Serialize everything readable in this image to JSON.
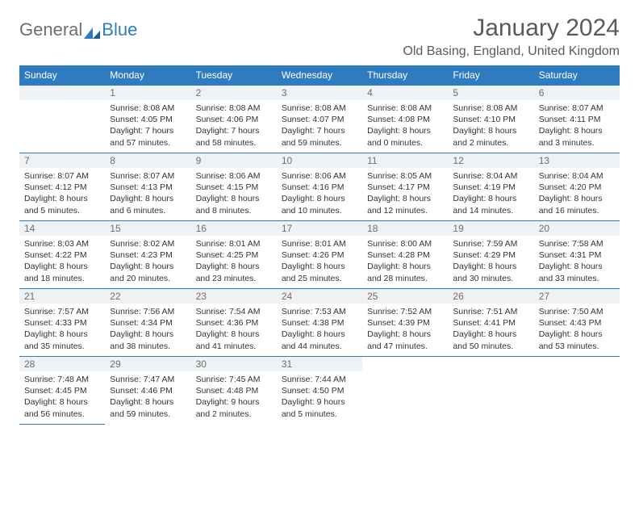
{
  "brand": {
    "part1": "General",
    "part2": "Blue"
  },
  "title": "January 2024",
  "location": "Old Basing, England, United Kingdom",
  "colors": {
    "header_bg": "#2f7bbf",
    "header_text": "#ffffff",
    "daynum_bg": "#eef2f5",
    "text": "#333333",
    "border": "#2f7bbf",
    "brand_gray": "#6e6e6e",
    "brand_blue": "#2f7bbf"
  },
  "font": {
    "family": "Arial",
    "title_size_pt": 22,
    "location_size_pt": 12,
    "header_size_pt": 9,
    "body_size_pt": 8
  },
  "weekdays": [
    "Sunday",
    "Monday",
    "Tuesday",
    "Wednesday",
    "Thursday",
    "Friday",
    "Saturday"
  ],
  "grid": {
    "rows": 6,
    "cols": 7,
    "first_day_col": 1,
    "days_in_month": 31
  },
  "days": [
    {
      "n": "1",
      "sunrise": "8:08 AM",
      "sunset": "4:05 PM",
      "daylight": "7 hours and 57 minutes."
    },
    {
      "n": "2",
      "sunrise": "8:08 AM",
      "sunset": "4:06 PM",
      "daylight": "7 hours and 58 minutes."
    },
    {
      "n": "3",
      "sunrise": "8:08 AM",
      "sunset": "4:07 PM",
      "daylight": "7 hours and 59 minutes."
    },
    {
      "n": "4",
      "sunrise": "8:08 AM",
      "sunset": "4:08 PM",
      "daylight": "8 hours and 0 minutes."
    },
    {
      "n": "5",
      "sunrise": "8:08 AM",
      "sunset": "4:10 PM",
      "daylight": "8 hours and 2 minutes."
    },
    {
      "n": "6",
      "sunrise": "8:07 AM",
      "sunset": "4:11 PM",
      "daylight": "8 hours and 3 minutes."
    },
    {
      "n": "7",
      "sunrise": "8:07 AM",
      "sunset": "4:12 PM",
      "daylight": "8 hours and 5 minutes."
    },
    {
      "n": "8",
      "sunrise": "8:07 AM",
      "sunset": "4:13 PM",
      "daylight": "8 hours and 6 minutes."
    },
    {
      "n": "9",
      "sunrise": "8:06 AM",
      "sunset": "4:15 PM",
      "daylight": "8 hours and 8 minutes."
    },
    {
      "n": "10",
      "sunrise": "8:06 AM",
      "sunset": "4:16 PM",
      "daylight": "8 hours and 10 minutes."
    },
    {
      "n": "11",
      "sunrise": "8:05 AM",
      "sunset": "4:17 PM",
      "daylight": "8 hours and 12 minutes."
    },
    {
      "n": "12",
      "sunrise": "8:04 AM",
      "sunset": "4:19 PM",
      "daylight": "8 hours and 14 minutes."
    },
    {
      "n": "13",
      "sunrise": "8:04 AM",
      "sunset": "4:20 PM",
      "daylight": "8 hours and 16 minutes."
    },
    {
      "n": "14",
      "sunrise": "8:03 AM",
      "sunset": "4:22 PM",
      "daylight": "8 hours and 18 minutes."
    },
    {
      "n": "15",
      "sunrise": "8:02 AM",
      "sunset": "4:23 PM",
      "daylight": "8 hours and 20 minutes."
    },
    {
      "n": "16",
      "sunrise": "8:01 AM",
      "sunset": "4:25 PM",
      "daylight": "8 hours and 23 minutes."
    },
    {
      "n": "17",
      "sunrise": "8:01 AM",
      "sunset": "4:26 PM",
      "daylight": "8 hours and 25 minutes."
    },
    {
      "n": "18",
      "sunrise": "8:00 AM",
      "sunset": "4:28 PM",
      "daylight": "8 hours and 28 minutes."
    },
    {
      "n": "19",
      "sunrise": "7:59 AM",
      "sunset": "4:29 PM",
      "daylight": "8 hours and 30 minutes."
    },
    {
      "n": "20",
      "sunrise": "7:58 AM",
      "sunset": "4:31 PM",
      "daylight": "8 hours and 33 minutes."
    },
    {
      "n": "21",
      "sunrise": "7:57 AM",
      "sunset": "4:33 PM",
      "daylight": "8 hours and 35 minutes."
    },
    {
      "n": "22",
      "sunrise": "7:56 AM",
      "sunset": "4:34 PM",
      "daylight": "8 hours and 38 minutes."
    },
    {
      "n": "23",
      "sunrise": "7:54 AM",
      "sunset": "4:36 PM",
      "daylight": "8 hours and 41 minutes."
    },
    {
      "n": "24",
      "sunrise": "7:53 AM",
      "sunset": "4:38 PM",
      "daylight": "8 hours and 44 minutes."
    },
    {
      "n": "25",
      "sunrise": "7:52 AM",
      "sunset": "4:39 PM",
      "daylight": "8 hours and 47 minutes."
    },
    {
      "n": "26",
      "sunrise": "7:51 AM",
      "sunset": "4:41 PM",
      "daylight": "8 hours and 50 minutes."
    },
    {
      "n": "27",
      "sunrise": "7:50 AM",
      "sunset": "4:43 PM",
      "daylight": "8 hours and 53 minutes."
    },
    {
      "n": "28",
      "sunrise": "7:48 AM",
      "sunset": "4:45 PM",
      "daylight": "8 hours and 56 minutes."
    },
    {
      "n": "29",
      "sunrise": "7:47 AM",
      "sunset": "4:46 PM",
      "daylight": "8 hours and 59 minutes."
    },
    {
      "n": "30",
      "sunrise": "7:45 AM",
      "sunset": "4:48 PM",
      "daylight": "9 hours and 2 minutes."
    },
    {
      "n": "31",
      "sunrise": "7:44 AM",
      "sunset": "4:50 PM",
      "daylight": "9 hours and 5 minutes."
    }
  ],
  "labels": {
    "sunrise": "Sunrise: ",
    "sunset": "Sunset: ",
    "daylight": "Daylight: "
  }
}
